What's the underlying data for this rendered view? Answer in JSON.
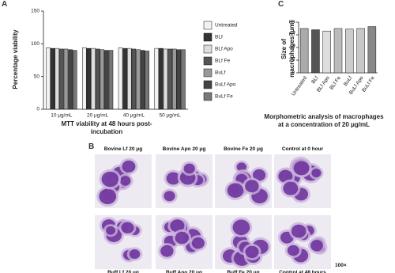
{
  "panels": {
    "a": "A",
    "b": "B",
    "c": "C"
  },
  "micrographs": {
    "labels": [
      "Bovine Lf 20 μg",
      "Bovine Apo 20 μg",
      "Bovine Fe 20 μg",
      "Control at 0 hour",
      "Buff Lf 20 μg",
      "Buff Apo 20 μg",
      "Buff Fe 20 μg",
      "Control at 48 hours"
    ],
    "magnification": "100×"
  },
  "chart_data": [
    {
      "type": "bar",
      "y_label": "Percentage viability",
      "x_label": "MTT viability at 48 hours post-incubation",
      "categories": [
        "10 μg/mL",
        "20 μg/mL",
        "40 μg/mL",
        "50 μg/mL"
      ],
      "series": [
        {
          "name": "Untreated",
          "color": "#f2f2f2",
          "values": [
            94,
            94,
            94,
            93
          ]
        },
        {
          "name": "BLf",
          "color": "#333333",
          "values": [
            93,
            93,
            93,
            93
          ]
        },
        {
          "name": "BLf Apo",
          "color": "#dddddd",
          "values": [
            93,
            93,
            93,
            92
          ]
        },
        {
          "name": "BLf Fe",
          "color": "#555555",
          "values": [
            92,
            92,
            92,
            92
          ]
        },
        {
          "name": "BuLf",
          "color": "#999999",
          "values": [
            92,
            91,
            91,
            92
          ]
        },
        {
          "name": "BuLf Apo",
          "color": "#444444",
          "values": [
            91,
            90,
            90,
            91
          ]
        },
        {
          "name": "BuLf Fe",
          "color": "#777777",
          "values": [
            90,
            90,
            89,
            91
          ]
        }
      ],
      "ylim": [
        0,
        150
      ],
      "yticks": [
        0,
        50,
        100,
        150
      ],
      "legend": "right"
    },
    {
      "type": "bar",
      "y_label": "Size of macrophages (μm)",
      "x_label": "Morphometric analysis of macrophages at a concentration of 20 μg/mL",
      "categories": [
        "Untreated",
        "BLf",
        "BLf Apo",
        "BLf Fe",
        "BuLf",
        "BuLf Apo",
        "BuLf Fe"
      ],
      "values": [
        70,
        68,
        66,
        70,
        69,
        70,
        73
      ],
      "colors": [
        "#aaaaaa",
        "#555555",
        "#dddddd",
        "#bbbbbb",
        "#cccccc",
        "#c8c8c8",
        "#888888"
      ],
      "ylim": [
        0,
        80
      ],
      "yticks": [
        0,
        20,
        40,
        60,
        80
      ]
    }
  ]
}
